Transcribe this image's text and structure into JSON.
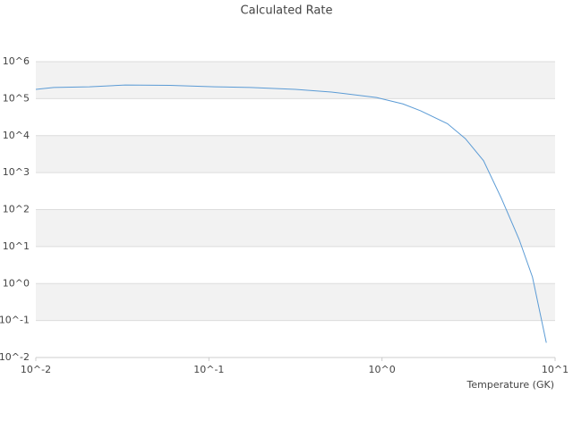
{
  "chart_data": {
    "type": "line",
    "title": "Calculated Rate",
    "x_label": "Temperature (GK)",
    "x": [
      0.01,
      0.0127,
      0.0204,
      0.0329,
      0.0596,
      0.108,
      0.174,
      0.316,
      0.51,
      0.93,
      1.32,
      1.67,
      2.39,
      3.03,
      3.86,
      4.9,
      6.2,
      7.4,
      8.9
    ],
    "values": [
      178000,
      200000,
      209000,
      234000,
      229000,
      209000,
      200000,
      178000,
      151000,
      107000,
      72000,
      47000,
      21000,
      8300,
      2100,
      200,
      15.5,
      1.5,
      0.025
    ],
    "color": "#5b9bd5",
    "xlim": [
      0.01,
      10
    ],
    "ylim": [
      0.01,
      1000000
    ],
    "xticks": [
      {
        "value": 0.01,
        "label": "10^-2"
      },
      {
        "value": 0.1,
        "label": "10^-1"
      },
      {
        "value": 1,
        "label": "10^0"
      },
      {
        "value": 10,
        "label": "10^1"
      }
    ],
    "yticks": [
      {
        "value": 0.01,
        "label": "10^-2"
      },
      {
        "value": 0.1,
        "label": "10^-1"
      },
      {
        "value": 1,
        "label": "10^0"
      },
      {
        "value": 10,
        "label": "10^1"
      },
      {
        "value": 100,
        "label": "10^2"
      },
      {
        "value": 1000,
        "label": "10^3"
      },
      {
        "value": 10000,
        "label": "10^4"
      },
      {
        "value": 100000,
        "label": "10^5"
      },
      {
        "value": 1000000,
        "label": "10^6"
      }
    ],
    "xscale": "log",
    "yscale": "log",
    "grid": true,
    "bands": true
  }
}
